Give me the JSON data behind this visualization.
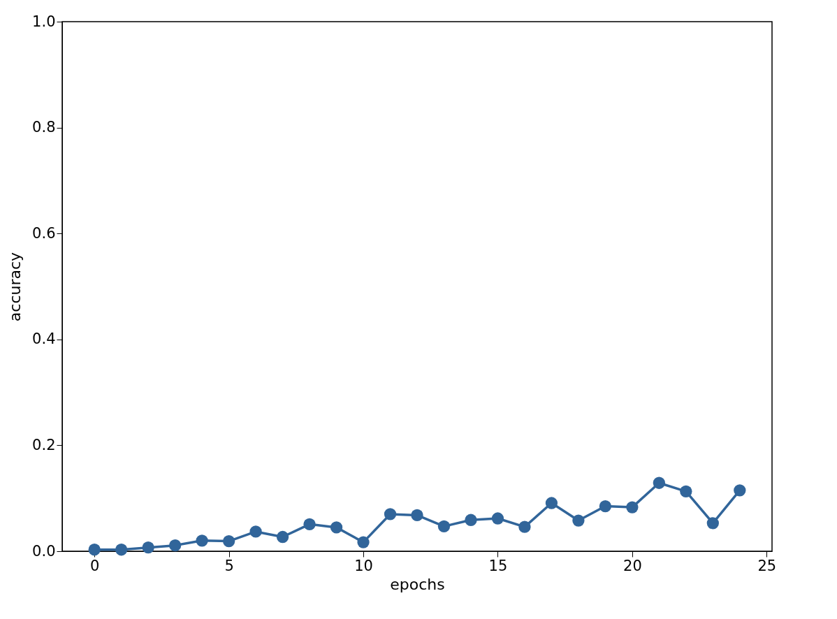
{
  "chart_data": {
    "type": "line",
    "xlabel": "epochs",
    "ylabel": "accuracy",
    "x": [
      0,
      1,
      2,
      3,
      4,
      5,
      6,
      7,
      8,
      9,
      10,
      11,
      12,
      13,
      14,
      15,
      16,
      17,
      18,
      19,
      20,
      21,
      22,
      23,
      24
    ],
    "series": [
      {
        "color": "#31659a",
        "values": [
          0.003,
          0.003,
          0.007,
          0.011,
          0.02,
          0.019,
          0.037,
          0.027,
          0.051,
          0.045,
          0.017,
          0.07,
          0.068,
          0.047,
          0.059,
          0.062,
          0.046,
          0.091,
          0.058,
          0.085,
          0.083,
          0.129,
          0.113,
          0.053,
          0.115
        ]
      }
    ],
    "xlim": [
      -1.2,
      25.2
    ],
    "ylim": [
      0,
      1
    ],
    "xticks": [
      0,
      5,
      10,
      15,
      20,
      25
    ],
    "yticks": [
      {
        "value": 0,
        "label": "0.0"
      },
      {
        "value": 0.2,
        "label": "0.2"
      },
      {
        "value": 0.4,
        "label": "0.4"
      },
      {
        "value": 0.6,
        "label": "0.6"
      },
      {
        "value": 0.8,
        "label": "0.8"
      },
      {
        "value": 1,
        "label": "1.0"
      }
    ],
    "grid": false,
    "legend": false,
    "marker": "circle",
    "line_style": "solid"
  }
}
